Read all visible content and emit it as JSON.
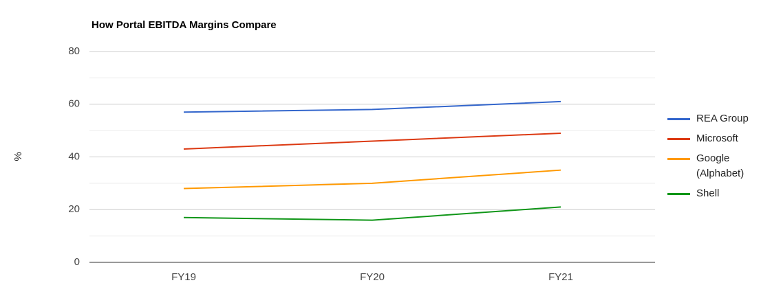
{
  "chart_data": {
    "type": "line",
    "title": "How Portal EBITDA Margins Compare",
    "y_label": "%",
    "categories": [
      "FY19",
      "FY20",
      "FY21"
    ],
    "series": [
      {
        "name": "REA Group",
        "color": "#3366cc",
        "values": [
          57,
          58,
          61
        ]
      },
      {
        "name": "Microsoft",
        "color": "#dc3912",
        "values": [
          43,
          46,
          49
        ]
      },
      {
        "name": "Google (Alphabet)",
        "color": "#ff9900",
        "values": [
          28,
          30,
          35
        ]
      },
      {
        "name": "Shell",
        "color": "#109618",
        "values": [
          17,
          16,
          21
        ]
      }
    ],
    "ylim": [
      0,
      80
    ],
    "yticks": [
      0,
      20,
      40,
      60,
      80
    ],
    "grid": true,
    "legend": "right"
  }
}
